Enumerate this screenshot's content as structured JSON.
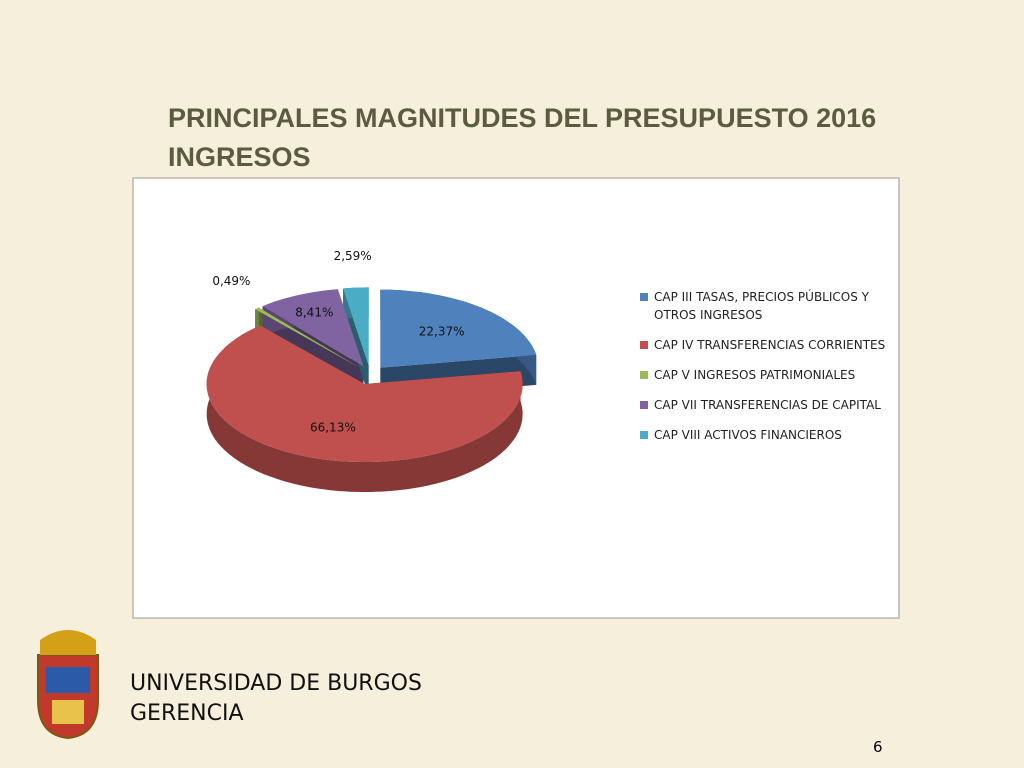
{
  "slide": {
    "title": [
      "PRINCIPALES MAGNITUDES DEL PRESUPUESTO 2016",
      "INGRESOS"
    ],
    "footer": [
      "UNIVERSIDAD DE BURGOS",
      "GERENCIA"
    ],
    "page_number": 6
  },
  "chart_data": {
    "type": "pie",
    "categories": [
      "CAP III TASAS, PRECIOS PÚBLICOS Y OTROS INGRESOS",
      "CAP IV TRANSFERENCIAS CORRIENTES",
      "CAP V INGRESOS PATRIMONIALES",
      "CAP VII TRANSFERENCIAS DE CAPITAL",
      "CAP VIII ACTIVOS FINANCIEROS"
    ],
    "values": [
      22.37,
      66.13,
      0.49,
      8.41,
      2.59
    ],
    "value_labels": [
      "22,37%",
      "66,13%",
      "0,49%",
      "8,41%",
      "2,59%"
    ],
    "colors": [
      "#4f81bd",
      "#c0504d",
      "#9bbb59",
      "#8064a2",
      "#4bacc6"
    ],
    "legend": "right"
  }
}
